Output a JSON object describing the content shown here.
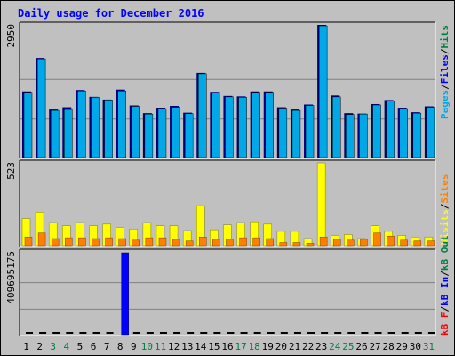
{
  "chart_data": [
    {
      "type": "bar",
      "title": "Daily usage for December 2016",
      "categories": [
        "1",
        "2",
        "3",
        "4",
        "5",
        "6",
        "7",
        "8",
        "9",
        "10",
        "11",
        "12",
        "13",
        "14",
        "15",
        "16",
        "17",
        "18",
        "19",
        "20",
        "21",
        "22",
        "23",
        "24",
        "25",
        "26",
        "27",
        "28",
        "29",
        "30",
        "31"
      ],
      "weekend_days": [
        "3",
        "4",
        "10",
        "11",
        "17",
        "18",
        "24",
        "25",
        "31"
      ],
      "ymax_label": "2950",
      "ylim": [
        0,
        2950
      ],
      "series": [
        {
          "name": "Hits",
          "values": [
            1480,
            2220,
            1080,
            1130,
            1510,
            1360,
            1300,
            1520,
            1170,
            1000,
            1120,
            1160,
            1010,
            1890,
            1470,
            1380,
            1370,
            1480,
            1480,
            1130,
            1080,
            1190,
            2950,
            1390,
            1000,
            990,
            1200,
            1290,
            1120,
            1020,
            1150
          ]
        },
        {
          "name": "Files",
          "values": [
            1460,
            2200,
            1060,
            1080,
            1490,
            1350,
            1290,
            1490,
            1150,
            980,
            1100,
            1130,
            990,
            1870,
            1450,
            1360,
            1350,
            1460,
            1460,
            1110,
            1060,
            1170,
            2930,
            1360,
            970,
            980,
            1180,
            1270,
            1100,
            1000,
            1130
          ]
        }
      ],
      "axis_label": [
        "Pages",
        "Files",
        "Hits"
      ],
      "axis_label_colors": [
        "#00a8e8",
        "#0000ff",
        "#008040"
      ]
    },
    {
      "type": "bar",
      "ymax_label": "523",
      "ylim": [
        0,
        523
      ],
      "series": [
        {
          "name": "Visits",
          "values": [
            175,
            215,
            150,
            130,
            150,
            130,
            140,
            120,
            110,
            150,
            130,
            130,
            100,
            255,
            105,
            135,
            150,
            155,
            140,
            95,
            95,
            50,
            523,
            70,
            75,
            50,
            130,
            95,
            70,
            60,
            60
          ]
        },
        {
          "name": "Sites",
          "values": [
            60,
            85,
            50,
            55,
            55,
            50,
            55,
            50,
            40,
            55,
            55,
            45,
            35,
            60,
            45,
            45,
            55,
            55,
            50,
            25,
            25,
            20,
            60,
            45,
            40,
            45,
            85,
            65,
            40,
            35,
            35
          ]
        }
      ],
      "axis_label": [
        "Visits",
        "Sites"
      ],
      "axis_label_colors": [
        "#ffff00",
        "#ff8000"
      ]
    },
    {
      "type": "bar",
      "ymax_label": "409695175",
      "ylim": [
        0,
        409695175
      ],
      "series": [
        {
          "name": "kB In",
          "values": [
            0,
            0,
            0,
            0,
            0,
            0,
            0,
            409695175,
            0,
            0,
            0,
            0,
            0,
            0,
            0,
            0,
            0,
            0,
            0,
            0,
            0,
            0,
            0,
            0,
            0,
            0,
            0,
            0,
            0,
            0,
            0
          ]
        },
        {
          "name": "kB Out",
          "values": [
            0,
            0,
            0,
            0,
            0,
            0,
            0,
            0,
            0,
            0,
            0,
            0,
            0,
            0,
            0,
            0,
            0,
            0,
            0,
            0,
            0,
            0,
            0,
            0,
            0,
            0,
            0,
            0,
            0,
            0,
            0
          ]
        }
      ],
      "axis_label": [
        "kB F",
        "kB In",
        "kB Out"
      ],
      "axis_label_colors": [
        "#ff0000",
        "#0000ff",
        "#008040"
      ]
    }
  ],
  "colors": {
    "background": "#c0c0c0",
    "panel": "#c0c0c0",
    "title": "#0000ff",
    "hits": "#00a8e8",
    "files": "#0000ff",
    "visits": "#ffff00",
    "sites": "#ff8000",
    "kbin": "#0000ff",
    "weekend": "#008040",
    "weekday": "#000000"
  }
}
